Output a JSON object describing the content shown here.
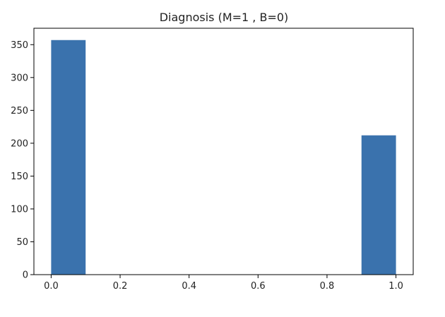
{
  "chart_data": {
    "type": "bar",
    "title": "Diagnosis (M=1 , B=0)",
    "xlabel": "",
    "ylabel": "",
    "xlim": [
      -0.05,
      1.05
    ],
    "ylim": [
      0,
      375
    ],
    "xticks": [
      0.0,
      0.2,
      0.4,
      0.6,
      0.8,
      1.0
    ],
    "xtick_labels": [
      "0.0",
      "0.2",
      "0.4",
      "0.6",
      "0.8",
      "1.0"
    ],
    "yticks": [
      0,
      50,
      100,
      150,
      200,
      250,
      300,
      350
    ],
    "ytick_labels": [
      "0",
      "50",
      "100",
      "150",
      "200",
      "250",
      "300",
      "350"
    ],
    "bins": [
      {
        "x0": 0.0,
        "x1": 0.1,
        "value": 357
      },
      {
        "x0": 0.1,
        "x1": 0.2,
        "value": 0
      },
      {
        "x0": 0.2,
        "x1": 0.3,
        "value": 0
      },
      {
        "x0": 0.3,
        "x1": 0.4,
        "value": 0
      },
      {
        "x0": 0.4,
        "x1": 0.5,
        "value": 0
      },
      {
        "x0": 0.5,
        "x1": 0.6,
        "value": 0
      },
      {
        "x0": 0.6,
        "x1": 0.7,
        "value": 0
      },
      {
        "x0": 0.7,
        "x1": 0.8,
        "value": 0
      },
      {
        "x0": 0.8,
        "x1": 0.9,
        "value": 0
      },
      {
        "x0": 0.9,
        "x1": 1.0,
        "value": 212
      }
    ],
    "bar_color": "#3a72ad",
    "grid": false,
    "legend": "none"
  }
}
